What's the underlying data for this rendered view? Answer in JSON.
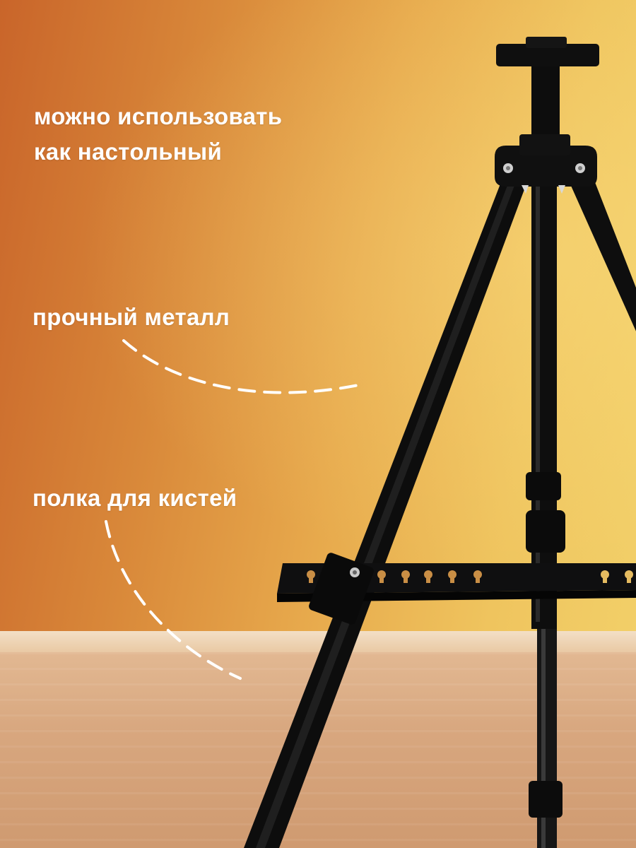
{
  "labels": {
    "desktop": "можно использовать\nкак настольный",
    "metal": "прочный металл",
    "shelf": "полка для кистей"
  },
  "colors": {
    "wall_left": "#c9652a",
    "wall_right": "#f2cf68",
    "floor": "#d8a77f",
    "easel": "#0f0f10",
    "text": "#ffffff"
  }
}
